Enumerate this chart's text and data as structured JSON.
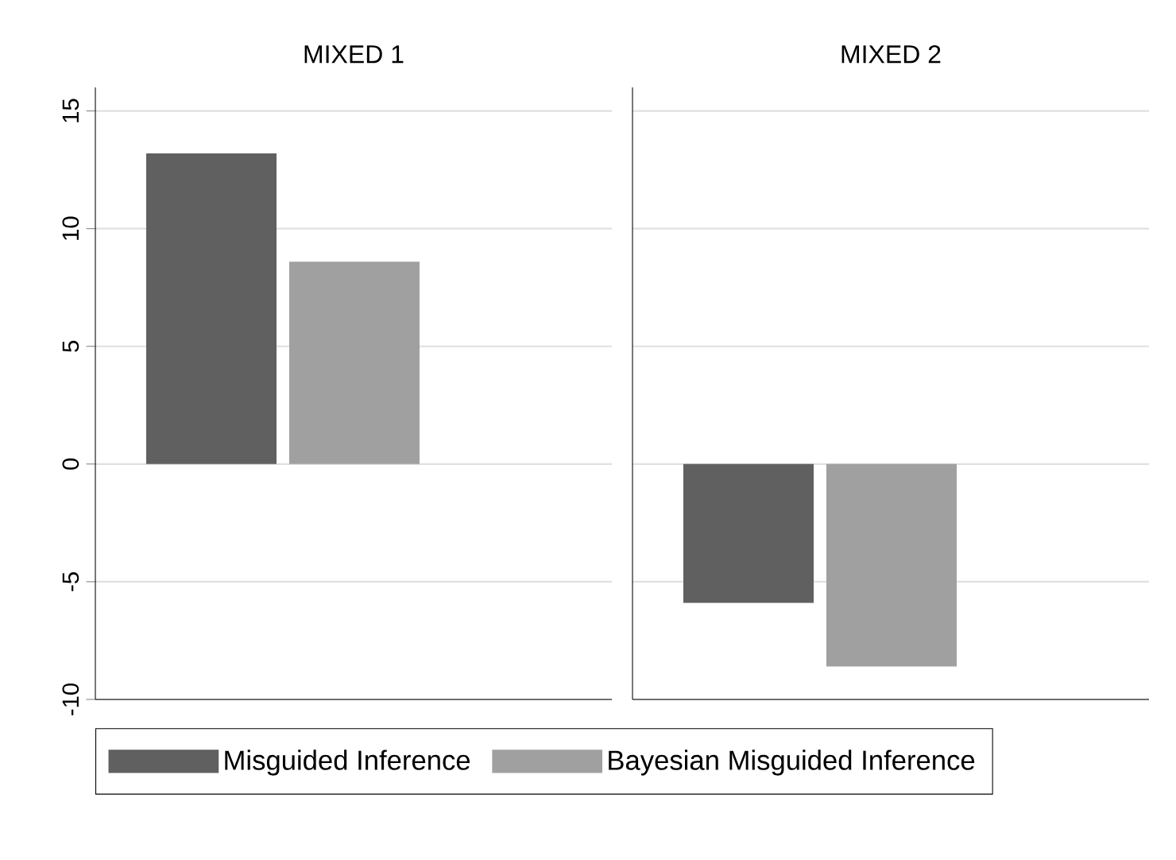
{
  "chart_data": {
    "type": "bar",
    "categories": [
      "MIXED 1",
      "MIXED 2"
    ],
    "series": [
      {
        "name": "Misguided Inference",
        "color": "#606060",
        "values": [
          13.2,
          -5.9
        ]
      },
      {
        "name": "Bayesian Misguided Inference",
        "color": "#a0a0a0",
        "values": [
          8.6,
          -8.6
        ]
      }
    ],
    "ylim": [
      -10,
      16
    ],
    "yticks": [
      -10,
      -5,
      0,
      5,
      10,
      15
    ],
    "grid": "y",
    "legend": "bottom"
  }
}
